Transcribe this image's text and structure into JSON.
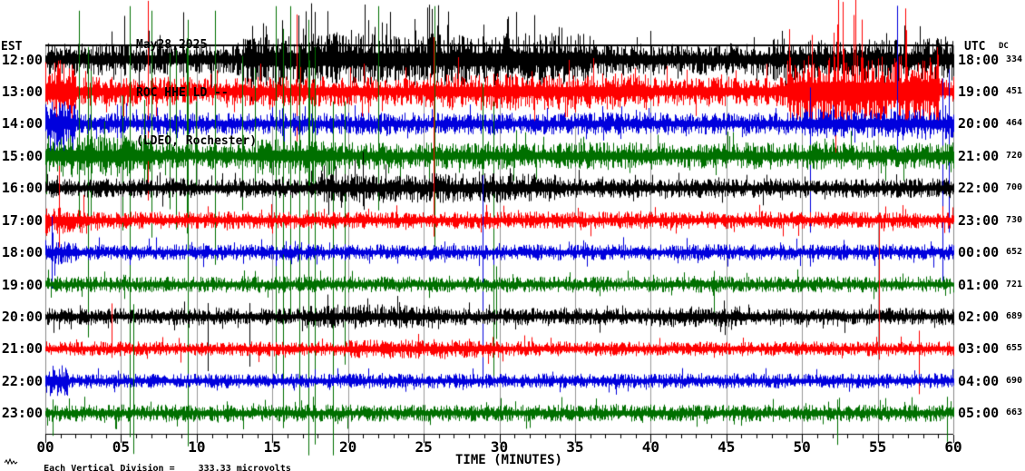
{
  "window": {
    "app": "webicorder-seismogram-display"
  },
  "chart_data": {
    "type": "line",
    "subtype": "helicorder-seismogram",
    "title_lines": [
      "May28,2025",
      "ROC HHE LD --",
      "(LDEO, Rochester)"
    ],
    "xlabel": "TIME (MINUTES)",
    "x_range_minutes": [
      0,
      60
    ],
    "x_major_tick_labels": [
      "00",
      "05",
      "10",
      "15",
      "20",
      "25",
      "30",
      "35",
      "40",
      "45",
      "50",
      "55",
      "60"
    ],
    "x_minor_tick_every_min": 1,
    "grid": {
      "vertical_every_min": 5,
      "color": "#999999",
      "border_color": "#888888",
      "axis_color": "#000000"
    },
    "left_axis": {
      "header": "EST"
    },
    "right_axis": {
      "header": "UTC",
      "header2": "DC"
    },
    "trace_colors": {
      "black": "#000000",
      "red": "#ff0000",
      "blue": "#0000dd",
      "green": "#007000"
    },
    "rows": [
      {
        "est": "12:00",
        "utc": "18:00",
        "dc": "334",
        "color": "black",
        "amp": 13,
        "bursts": [
          [
            13,
            36,
            21
          ],
          [
            48,
            60,
            17
          ]
        ],
        "spikes": [
          [
            5.2,
            48,
            18
          ],
          [
            9.1,
            52,
            20
          ]
        ],
        "spike_zone": [
          13.5,
          35,
          30,
          62,
          26
        ]
      },
      {
        "est": "13:00",
        "utc": "19:00",
        "dc": "451",
        "color": "red",
        "amp": 12,
        "bursts": [
          [
            0,
            2,
            26
          ],
          [
            25,
            40,
            15
          ],
          [
            49,
            59,
            30
          ]
        ],
        "spikes": [
          [
            6.8,
            100,
            120
          ],
          [
            16.6,
            85,
            55
          ],
          [
            25.65,
            60,
            75
          ]
        ],
        "spike_zone": [
          49,
          57,
          12,
          120,
          40
        ]
      },
      {
        "est": "14:00",
        "utc": "20:00",
        "dc": "464",
        "color": "blue",
        "amp": 9,
        "bursts": [
          [
            0,
            2,
            18
          ],
          [
            50,
            60,
            12
          ]
        ],
        "spikes": [
          [
            50.5,
            40,
            120
          ],
          [
            56.3,
            130,
            30
          ],
          [
            59.3,
            50,
            180
          ],
          [
            59.7,
            60,
            120
          ]
        ],
        "spike_zone": null
      },
      {
        "est": "15:00",
        "utc": "21:00",
        "dc": "720",
        "color": "green",
        "amp": 11,
        "bursts": [
          [
            0,
            7,
            17
          ],
          [
            14,
            19,
            16
          ]
        ],
        "spikes": [
          [
            2.2,
            160,
            80
          ],
          [
            2.8,
            120,
            200
          ],
          [
            5.6,
            165,
            310
          ],
          [
            7.0,
            160,
            90
          ],
          [
            9.4,
            150,
            320
          ],
          [
            11.2,
            160,
            120
          ],
          [
            13.0,
            110,
            60
          ],
          [
            15.2,
            165,
            240
          ],
          [
            15.7,
            140,
            300
          ],
          [
            16.2,
            165,
            180
          ],
          [
            16.8,
            120,
            280
          ],
          [
            17.4,
            150,
            330
          ],
          [
            17.8,
            120,
            318
          ],
          [
            19.0,
            60,
            330
          ],
          [
            19.8,
            60,
            230
          ],
          [
            22.0,
            165,
            60
          ],
          [
            25.7,
            165,
            100
          ],
          [
            28.9,
            80,
            160
          ],
          [
            29.6,
            60,
            250
          ]
        ],
        "spike_zone": [
          1,
          18,
          10,
          130,
          90
        ]
      },
      {
        "est": "16:00",
        "utc": "22:00",
        "dc": "700",
        "color": "black",
        "amp": 8,
        "bursts": [
          [
            18,
            34,
            12
          ]
        ],
        "spikes": [
          [
            21,
            40,
            20
          ]
        ],
        "spike_zone": null
      },
      {
        "est": "17:00",
        "utc": "23:00",
        "dc": "730",
        "color": "red",
        "amp": 7,
        "bursts": [
          [
            0,
            3,
            11
          ]
        ],
        "spikes": [
          [
            0.9,
            60,
            30
          ],
          [
            25.65,
            200,
            18
          ]
        ],
        "spike_zone": null
      },
      {
        "est": "18:00",
        "utc": "00:00",
        "dc": "652",
        "color": "blue",
        "amp": 6.5,
        "bursts": [
          [
            0,
            2,
            10
          ]
        ],
        "spikes": [
          [
            0.4,
            40,
            40
          ],
          [
            28.9,
            85,
            140
          ]
        ],
        "spike_zone": null
      },
      {
        "est": "19:00",
        "utc": "01:00",
        "dc": "721",
        "color": "green",
        "amp": 6.5,
        "bursts": [],
        "spikes": [
          [
            29.8,
            20,
            60
          ],
          [
            44.2,
            15,
            45
          ]
        ],
        "spike_zone": null
      },
      {
        "est": "20:00",
        "utc": "02:00",
        "dc": "689",
        "color": "black",
        "amp": 7,
        "bursts": [
          [
            17,
            26,
            10
          ],
          [
            40,
            47,
            8.5
          ]
        ],
        "spikes": [
          [
            10.7,
            15,
            60
          ],
          [
            13.5,
            15,
            55
          ]
        ],
        "spike_zone": null
      },
      {
        "est": "21:00",
        "utc": "03:00",
        "dc": "655",
        "color": "red",
        "amp": 6,
        "bursts": [
          [
            20,
            30,
            8
          ]
        ],
        "spikes": [
          [
            4.4,
            50,
            10
          ],
          [
            55.1,
            150,
            12
          ],
          [
            57.7,
            20,
            50
          ]
        ],
        "spike_zone": null
      },
      {
        "est": "22:00",
        "utc": "04:00",
        "dc": "690",
        "color": "blue",
        "amp": 6,
        "bursts": [
          [
            0,
            1.5,
            14
          ]
        ],
        "spikes": [],
        "spike_zone": null
      },
      {
        "est": "23:00",
        "utc": "05:00",
        "dc": "663",
        "color": "green",
        "amp": 7,
        "bursts": [],
        "spikes": [
          [
            0.5,
            15,
            25
          ],
          [
            5.8,
            120,
            45
          ],
          [
            52.3,
            15,
            35
          ],
          [
            59.6,
            18,
            32
          ]
        ],
        "spike_zone": null
      }
    ],
    "footer": {
      "label": "Each Vertical Division =",
      "value": "333.33 microvolts"
    }
  }
}
